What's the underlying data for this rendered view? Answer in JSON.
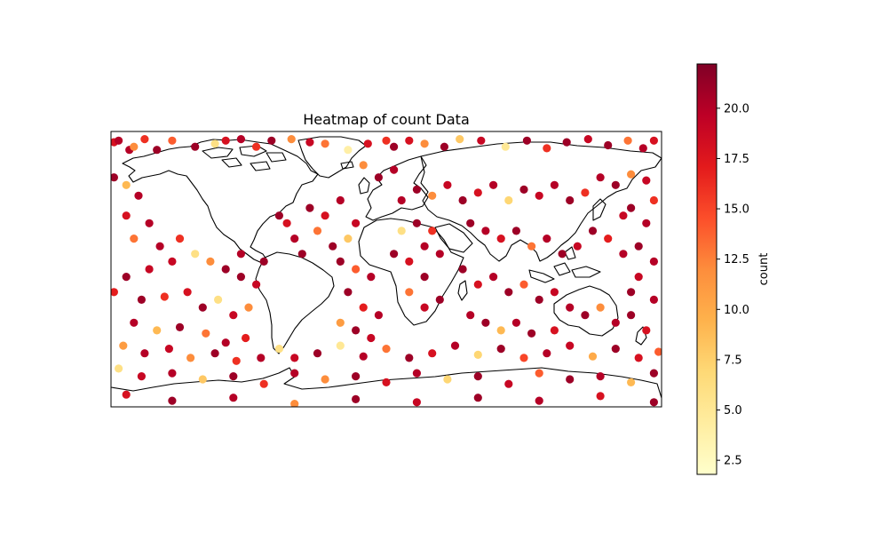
{
  "chart_data": {
    "type": "scatter",
    "title": "Heatmap of count Data",
    "colorbar": {
      "label": "count",
      "vmin": 1.8,
      "vmax": 22.2,
      "ticks": [
        2.5,
        5.0,
        7.5,
        10.0,
        12.5,
        15.0,
        17.5,
        20.0
      ],
      "tick_labels": [
        "2.5",
        "5.0",
        "7.5",
        "10.0",
        "12.5",
        "15.0",
        "17.5",
        "20.0"
      ],
      "colormap": "YlOrRd",
      "stops": [
        "#ffffcc",
        "#ffeda0",
        "#fed976",
        "#feb24c",
        "#fd8d3c",
        "#fc4e2a",
        "#e31a1c",
        "#bd0026",
        "#800026"
      ]
    },
    "map": {
      "projection": "PlateCarree",
      "lon_range": [
        -180,
        180
      ],
      "lat_range": [
        -90,
        90
      ],
      "coastlines": true
    },
    "points": [
      {
        "lon": -178,
        "lat": 83,
        "count": 18
      },
      {
        "lon": -175,
        "lat": 84,
        "count": 20
      },
      {
        "lon": -168,
        "lat": 78,
        "count": 20
      },
      {
        "lon": -165,
        "lat": 80,
        "count": 12
      },
      {
        "lon": -158,
        "lat": 85,
        "count": 16
      },
      {
        "lon": -150,
        "lat": 78,
        "count": 21
      },
      {
        "lon": -140,
        "lat": 84,
        "count": 14
      },
      {
        "lon": -125,
        "lat": 80,
        "count": 21
      },
      {
        "lon": -112,
        "lat": 82,
        "count": 6
      },
      {
        "lon": -105,
        "lat": 84,
        "count": 18
      },
      {
        "lon": -95,
        "lat": 85,
        "count": 20
      },
      {
        "lon": -85,
        "lat": 80,
        "count": 16
      },
      {
        "lon": -75,
        "lat": 84,
        "count": 21
      },
      {
        "lon": -62,
        "lat": 85,
        "count": 12
      },
      {
        "lon": -50,
        "lat": 83,
        "count": 19
      },
      {
        "lon": -40,
        "lat": 82,
        "count": 13
      },
      {
        "lon": -25,
        "lat": 78,
        "count": 4
      },
      {
        "lon": -12,
        "lat": 82,
        "count": 18
      },
      {
        "lon": 0,
        "lat": 84,
        "count": 16
      },
      {
        "lon": 5,
        "lat": 80,
        "count": 21
      },
      {
        "lon": 15,
        "lat": 84,
        "count": 18
      },
      {
        "lon": 25,
        "lat": 82,
        "count": 12
      },
      {
        "lon": 38,
        "lat": 80,
        "count": 21
      },
      {
        "lon": 48,
        "lat": 85,
        "count": 8
      },
      {
        "lon": 62,
        "lat": 84,
        "count": 19
      },
      {
        "lon": 78,
        "lat": 80,
        "count": 5
      },
      {
        "lon": 92,
        "lat": 84,
        "count": 21
      },
      {
        "lon": 105,
        "lat": 79,
        "count": 16
      },
      {
        "lon": 118,
        "lat": 83,
        "count": 21
      },
      {
        "lon": 132,
        "lat": 85,
        "count": 19
      },
      {
        "lon": 145,
        "lat": 81,
        "count": 21
      },
      {
        "lon": 158,
        "lat": 84,
        "count": 13
      },
      {
        "lon": 168,
        "lat": 79,
        "count": 20
      },
      {
        "lon": 175,
        "lat": 84,
        "count": 18
      },
      {
        "lon": -178,
        "lat": 60,
        "count": 21
      },
      {
        "lon": -170,
        "lat": 55,
        "count": 9
      },
      {
        "lon": -162,
        "lat": 48,
        "count": 20
      },
      {
        "lon": -170,
        "lat": 35,
        "count": 18
      },
      {
        "lon": -155,
        "lat": 30,
        "count": 20
      },
      {
        "lon": -165,
        "lat": 20,
        "count": 13
      },
      {
        "lon": -148,
        "lat": 15,
        "count": 20
      },
      {
        "lon": -135,
        "lat": 20,
        "count": 16
      },
      {
        "lon": -140,
        "lat": 5,
        "count": 19
      },
      {
        "lon": -125,
        "lat": 10,
        "count": 6
      },
      {
        "lon": -155,
        "lat": 0,
        "count": 19
      },
      {
        "lon": -170,
        "lat": -5,
        "count": 21
      },
      {
        "lon": -178,
        "lat": -15,
        "count": 17
      },
      {
        "lon": -160,
        "lat": -20,
        "count": 21
      },
      {
        "lon": -145,
        "lat": -18,
        "count": 16
      },
      {
        "lon": -130,
        "lat": -15,
        "count": 18
      },
      {
        "lon": -120,
        "lat": -25,
        "count": 21
      },
      {
        "lon": -110,
        "lat": -20,
        "count": 6
      },
      {
        "lon": -100,
        "lat": -30,
        "count": 19
      },
      {
        "lon": -90,
        "lat": -25,
        "count": 12
      },
      {
        "lon": -165,
        "lat": -35,
        "count": 20
      },
      {
        "lon": -150,
        "lat": -40,
        "count": 9
      },
      {
        "lon": -135,
        "lat": -38,
        "count": 21
      },
      {
        "lon": -118,
        "lat": -42,
        "count": 13
      },
      {
        "lon": -105,
        "lat": -48,
        "count": 20
      },
      {
        "lon": -92,
        "lat": -45,
        "count": 17
      },
      {
        "lon": -172,
        "lat": -50,
        "count": 11
      },
      {
        "lon": -158,
        "lat": -55,
        "count": 20
      },
      {
        "lon": -142,
        "lat": -52,
        "count": 19
      },
      {
        "lon": -128,
        "lat": -58,
        "count": 12
      },
      {
        "lon": -112,
        "lat": -55,
        "count": 21
      },
      {
        "lon": -98,
        "lat": -60,
        "count": 16
      },
      {
        "lon": -82,
        "lat": -58,
        "count": 20
      },
      {
        "lon": -70,
        "lat": -52,
        "count": 6
      },
      {
        "lon": -60,
        "lat": -58,
        "count": 19
      },
      {
        "lon": -45,
        "lat": -55,
        "count": 21
      },
      {
        "lon": -30,
        "lat": -50,
        "count": 5
      },
      {
        "lon": -15,
        "lat": -57,
        "count": 20
      },
      {
        "lon": 0,
        "lat": -52,
        "count": 13
      },
      {
        "lon": 15,
        "lat": -58,
        "count": 21
      },
      {
        "lon": 30,
        "lat": -55,
        "count": 18
      },
      {
        "lon": 45,
        "lat": -50,
        "count": 20
      },
      {
        "lon": 60,
        "lat": -56,
        "count": 7
      },
      {
        "lon": 75,
        "lat": -52,
        "count": 21
      },
      {
        "lon": 90,
        "lat": -58,
        "count": 15
      },
      {
        "lon": 105,
        "lat": -55,
        "count": 20
      },
      {
        "lon": 120,
        "lat": -50,
        "count": 19
      },
      {
        "lon": 135,
        "lat": -57,
        "count": 10
      },
      {
        "lon": 150,
        "lat": -52,
        "count": 21
      },
      {
        "lon": 165,
        "lat": -58,
        "count": 18
      },
      {
        "lon": 178,
        "lat": -54,
        "count": 14
      },
      {
        "lon": -175,
        "lat": -65,
        "count": 6
      },
      {
        "lon": -160,
        "lat": -70,
        "count": 19
      },
      {
        "lon": -140,
        "lat": -68,
        "count": 20
      },
      {
        "lon": -120,
        "lat": -72,
        "count": 8
      },
      {
        "lon": -100,
        "lat": -70,
        "count": 21
      },
      {
        "lon": -80,
        "lat": -75,
        "count": 16
      },
      {
        "lon": -60,
        "lat": -68,
        "count": 20
      },
      {
        "lon": -40,
        "lat": -72,
        "count": 12
      },
      {
        "lon": -20,
        "lat": -70,
        "count": 21
      },
      {
        "lon": 0,
        "lat": -74,
        "count": 18
      },
      {
        "lon": 20,
        "lat": -68,
        "count": 20
      },
      {
        "lon": 40,
        "lat": -72,
        "count": 7
      },
      {
        "lon": 60,
        "lat": -70,
        "count": 21
      },
      {
        "lon": 80,
        "lat": -75,
        "count": 19
      },
      {
        "lon": 100,
        "lat": -68,
        "count": 14
      },
      {
        "lon": 120,
        "lat": -72,
        "count": 21
      },
      {
        "lon": 140,
        "lat": -70,
        "count": 20
      },
      {
        "lon": 160,
        "lat": -74,
        "count": 9
      },
      {
        "lon": 175,
        "lat": -68,
        "count": 21
      },
      {
        "lon": -170,
        "lat": -82,
        "count": 18
      },
      {
        "lon": -140,
        "lat": -86,
        "count": 21
      },
      {
        "lon": -100,
        "lat": -84,
        "count": 20
      },
      {
        "lon": -60,
        "lat": -88,
        "count": 12
      },
      {
        "lon": -20,
        "lat": -85,
        "count": 21
      },
      {
        "lon": 20,
        "lat": -87,
        "count": 19
      },
      {
        "lon": 60,
        "lat": -84,
        "count": 21
      },
      {
        "lon": 100,
        "lat": -86,
        "count": 20
      },
      {
        "lon": 140,
        "lat": -83,
        "count": 18
      },
      {
        "lon": 175,
        "lat": -87,
        "count": 21
      },
      {
        "lon": -50,
        "lat": 40,
        "count": 21
      },
      {
        "lon": -40,
        "lat": 35,
        "count": 18
      },
      {
        "lon": -30,
        "lat": 45,
        "count": 20
      },
      {
        "lon": -45,
        "lat": 25,
        "count": 13
      },
      {
        "lon": -35,
        "lat": 15,
        "count": 21
      },
      {
        "lon": -25,
        "lat": 20,
        "count": 8
      },
      {
        "lon": -20,
        "lat": 30,
        "count": 19
      },
      {
        "lon": -30,
        "lat": 5,
        "count": 21
      },
      {
        "lon": -20,
        "lat": 0,
        "count": 14
      },
      {
        "lon": -10,
        "lat": -5,
        "count": 20
      },
      {
        "lon": -25,
        "lat": -15,
        "count": 21
      },
      {
        "lon": -15,
        "lat": -25,
        "count": 17
      },
      {
        "lon": -5,
        "lat": -30,
        "count": 20
      },
      {
        "lon": -30,
        "lat": -35,
        "count": 11
      },
      {
        "lon": -20,
        "lat": -40,
        "count": 21
      },
      {
        "lon": -10,
        "lat": -45,
        "count": 19
      },
      {
        "lon": 5,
        "lat": 10,
        "count": 21
      },
      {
        "lon": 15,
        "lat": 5,
        "count": 18
      },
      {
        "lon": 25,
        "lat": 15,
        "count": 20
      },
      {
        "lon": 10,
        "lat": 25,
        "count": 6
      },
      {
        "lon": 20,
        "lat": 30,
        "count": 21
      },
      {
        "lon": 30,
        "lat": 25,
        "count": 16
      },
      {
        "lon": 35,
        "lat": 10,
        "count": 20
      },
      {
        "lon": 25,
        "lat": -5,
        "count": 21
      },
      {
        "lon": 15,
        "lat": -15,
        "count": 13
      },
      {
        "lon": 25,
        "lat": -25,
        "count": 19
      },
      {
        "lon": 35,
        "lat": -20,
        "count": 21
      },
      {
        "lon": 10,
        "lat": 45,
        "count": 20
      },
      {
        "lon": 20,
        "lat": 52,
        "count": 21
      },
      {
        "lon": 30,
        "lat": 48,
        "count": 12
      },
      {
        "lon": 40,
        "lat": 55,
        "count": 19
      },
      {
        "lon": 50,
        "lat": 45,
        "count": 21
      },
      {
        "lon": 60,
        "lat": 50,
        "count": 18
      },
      {
        "lon": 70,
        "lat": 55,
        "count": 20
      },
      {
        "lon": 80,
        "lat": 45,
        "count": 7
      },
      {
        "lon": 90,
        "lat": 52,
        "count": 21
      },
      {
        "lon": 100,
        "lat": 48,
        "count": 19
      },
      {
        "lon": 110,
        "lat": 55,
        "count": 20
      },
      {
        "lon": 120,
        "lat": 45,
        "count": 21
      },
      {
        "lon": 130,
        "lat": 50,
        "count": 16
      },
      {
        "lon": 140,
        "lat": 60,
        "count": 20
      },
      {
        "lon": 150,
        "lat": 55,
        "count": 21
      },
      {
        "lon": 160,
        "lat": 62,
        "count": 12
      },
      {
        "lon": 170,
        "lat": 58,
        "count": 19
      },
      {
        "lon": 55,
        "lat": 30,
        "count": 21
      },
      {
        "lon": 65,
        "lat": 25,
        "count": 20
      },
      {
        "lon": 75,
        "lat": 20,
        "count": 18
      },
      {
        "lon": 85,
        "lat": 25,
        "count": 21
      },
      {
        "lon": 95,
        "lat": 15,
        "count": 13
      },
      {
        "lon": 105,
        "lat": 20,
        "count": 20
      },
      {
        "lon": 115,
        "lat": 10,
        "count": 21
      },
      {
        "lon": 125,
        "lat": 15,
        "count": 19
      },
      {
        "lon": 135,
        "lat": 25,
        "count": 21
      },
      {
        "lon": 145,
        "lat": 20,
        "count": 17
      },
      {
        "lon": 155,
        "lat": 10,
        "count": 20
      },
      {
        "lon": 165,
        "lat": 15,
        "count": 21
      },
      {
        "lon": 175,
        "lat": 5,
        "count": 20
      },
      {
        "lon": 50,
        "lat": 0,
        "count": 21
      },
      {
        "lon": 60,
        "lat": -10,
        "count": 18
      },
      {
        "lon": 70,
        "lat": -5,
        "count": 20
      },
      {
        "lon": 80,
        "lat": -15,
        "count": 21
      },
      {
        "lon": 90,
        "lat": -10,
        "count": 14
      },
      {
        "lon": 100,
        "lat": -20,
        "count": 21
      },
      {
        "lon": 110,
        "lat": -15,
        "count": 19
      },
      {
        "lon": 120,
        "lat": -25,
        "count": 20
      },
      {
        "lon": 130,
        "lat": -30,
        "count": 21
      },
      {
        "lon": 140,
        "lat": -25,
        "count": 12
      },
      {
        "lon": 150,
        "lat": -35,
        "count": 20
      },
      {
        "lon": 160,
        "lat": -30,
        "count": 21
      },
      {
        "lon": 170,
        "lat": -40,
        "count": 18
      },
      {
        "lon": 55,
        "lat": -30,
        "count": 20
      },
      {
        "lon": 65,
        "lat": -35,
        "count": 21
      },
      {
        "lon": 75,
        "lat": -40,
        "count": 9
      },
      {
        "lon": 85,
        "lat": -35,
        "count": 20
      },
      {
        "lon": 95,
        "lat": -42,
        "count": 21
      },
      {
        "lon": 110,
        "lat": -40,
        "count": 18
      },
      {
        "lon": -80,
        "lat": 5,
        "count": 21
      },
      {
        "lon": -95,
        "lat": 10,
        "count": 20
      },
      {
        "lon": -105,
        "lat": 0,
        "count": 21
      },
      {
        "lon": -115,
        "lat": 5,
        "count": 12
      },
      {
        "lon": -85,
        "lat": -10,
        "count": 19
      },
      {
        "lon": -95,
        "lat": -5,
        "count": 21
      },
      {
        "lon": -60,
        "lat": 20,
        "count": 20
      },
      {
        "lon": -55,
        "lat": 10,
        "count": 21
      },
      {
        "lon": -65,
        "lat": 30,
        "count": 18
      },
      {
        "lon": -70,
        "lat": 35,
        "count": 21
      },
      {
        "lon": 170,
        "lat": 30,
        "count": 20
      },
      {
        "lon": 160,
        "lat": 40,
        "count": 21
      },
      {
        "lon": 175,
        "lat": 45,
        "count": 16
      },
      {
        "lon": 155,
        "lat": 35,
        "count": 19
      },
      {
        "lon": -5,
        "lat": 60,
        "count": 21
      },
      {
        "lon": 5,
        "lat": 65,
        "count": 20
      },
      {
        "lon": -15,
        "lat": 68,
        "count": 12
      },
      {
        "lon": 160,
        "lat": -15,
        "count": 21
      },
      {
        "lon": 175,
        "lat": -20,
        "count": 20
      },
      {
        "lon": 165,
        "lat": -5,
        "count": 19
      }
    ]
  }
}
